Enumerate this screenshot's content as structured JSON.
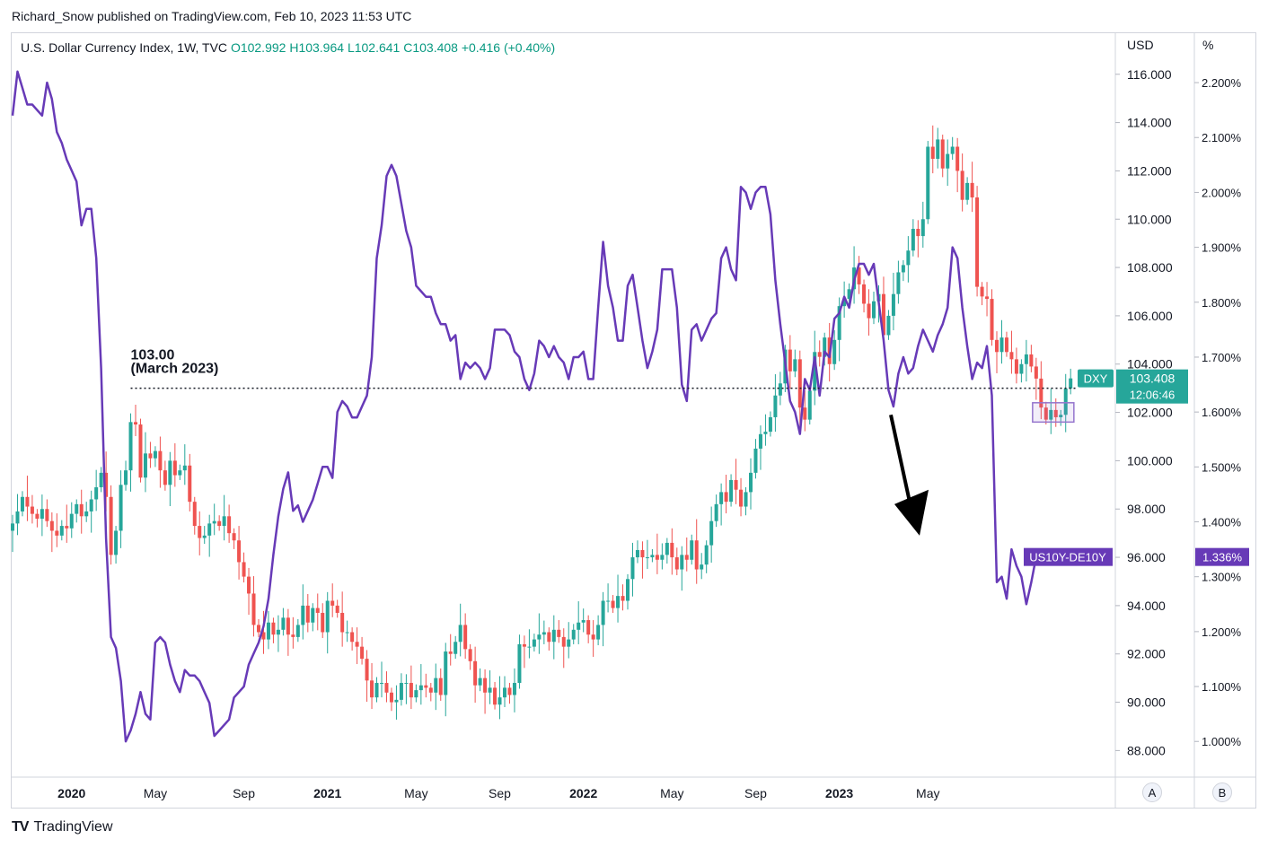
{
  "publisher": "Richard_Snow published on TradingView.com, Feb 10, 2023 11:53 UTC",
  "legend": {
    "symbol": "U.S. Dollar Currency Index, 1W, TVC",
    "open": "O102.992",
    "high": "H103.964",
    "low": "L102.641",
    "close": "C103.408",
    "change": "+0.416 (+0.40%)"
  },
  "brand": "TradingView",
  "scale_buttons": [
    "A",
    "B"
  ],
  "colors": {
    "up": "#26a69a",
    "down": "#ef5350",
    "spread_line": "#673ab7",
    "dxy_label_bg": "#26a69a",
    "spread_label_bg": "#673ab7",
    "highlight_box": "#9575cd"
  },
  "chart_data": {
    "type": "line",
    "title": "",
    "left_axis_unit": "",
    "right_axis_unit": "USD",
    "pct_axis_unit": "%",
    "x_ticks": [
      "2020",
      "May",
      "Sep",
      "2021",
      "May",
      "Sep",
      "2022",
      "May",
      "Sep",
      "2023",
      "May"
    ],
    "usd_ticks": [
      "116.000",
      "114.000",
      "112.000",
      "110.000",
      "108.000",
      "106.000",
      "104.000",
      "102.000",
      "100.000",
      "98.000",
      "96.000",
      "94.000",
      "92.000",
      "90.000",
      "88.000"
    ],
    "pct_ticks": [
      "2.200%",
      "2.100%",
      "2.000%",
      "1.900%",
      "1.800%",
      "1.700%",
      "1.600%",
      "1.500%",
      "1.400%",
      "1.300%",
      "1.200%",
      "1.100%",
      "1.000%"
    ],
    "usd_range": [
      86.9,
      117.7
    ],
    "pct_range": [
      0.935,
      2.29
    ],
    "annotation": {
      "line1": "103.00",
      "line2": "(March 2023)",
      "level": 103.0
    },
    "dxy": {
      "name": "DXY",
      "last": "103.408",
      "countdown": "12:06:46",
      "weekly_closes": [
        97.4,
        97.9,
        98.5,
        98.1,
        97.8,
        97.6,
        98.0,
        97.5,
        97.1,
        96.9,
        97.3,
        97.2,
        97.8,
        98.2,
        97.7,
        97.9,
        98.4,
        98.9,
        99.5,
        98.5,
        96.1,
        97.1,
        99.0,
        99.6,
        101.6,
        101.5,
        99.3,
        100.3,
        100.1,
        100.4,
        99.6,
        99.0,
        100.0,
        99.4,
        99.6,
        99.8,
        98.3,
        97.3,
        96.8,
        96.9,
        97.4,
        97.5,
        97.3,
        97.7,
        97.0,
        96.7,
        95.8,
        95.2,
        94.5,
        93.2,
        92.9,
        92.6,
        93.3,
        92.8,
        93.0,
        93.5,
        92.8,
        92.7,
        93.2,
        94.0,
        93.3,
        93.9,
        93.7,
        92.9,
        94.2,
        94.0,
        93.7,
        92.9,
        92.9,
        92.5,
        92.3,
        91.8,
        90.9,
        90.2,
        90.8,
        90.8,
        90.4,
        90.0,
        90.1,
        90.8,
        90.8,
        90.2,
        90.5,
        90.7,
        90.6,
        90.4,
        91.0,
        90.3,
        92.1,
        92.0,
        92.5,
        93.2,
        92.2,
        91.7,
        90.7,
        91.0,
        90.4,
        90.6,
        89.9,
        90.2,
        90.6,
        90.3,
        90.8,
        92.4,
        92.3,
        92.3,
        92.6,
        92.8,
        92.9,
        92.5,
        93.0,
        92.7,
        92.3,
        92.6,
        93.0,
        93.3,
        93.4,
        92.8,
        92.6,
        93.2,
        94.2,
        94.2,
        93.9,
        94.4,
        94.2,
        95.1,
        96.0,
        96.3,
        96.0,
        96.0,
        96.1,
        95.9,
        96.1,
        96.6,
        96.0,
        95.5,
        96.1,
        95.9,
        96.7,
        95.5,
        95.7,
        96.5,
        97.5,
        98.2,
        98.7,
        98.3,
        99.2,
        98.8,
        98.1,
        98.7,
        99.5,
        100.5,
        101.1,
        101.2,
        101.8,
        102.7,
        103.2,
        104.6,
        103.7,
        104.2,
        102.2,
        101.7,
        102.9,
        104.5,
        104.3,
        105.1,
        104.0,
        105.0,
        106.4,
        106.7,
        107.1,
        108.0,
        107.3,
        106.5,
        105.9,
        106.6,
        106.9,
        105.2,
        106.0,
        106.9,
        107.8,
        108.1,
        108.7,
        109.6,
        109.3,
        110.0,
        113.0,
        112.5,
        113.3,
        112.1,
        112.7,
        113.0,
        112.0,
        110.8,
        111.5,
        110.9,
        107.2,
        106.8,
        106.7,
        105.0,
        104.5,
        105.1,
        104.5,
        104.2,
        103.6,
        104.0,
        104.4,
        103.9,
        103.4,
        102.2,
        101.7,
        102.1,
        101.8,
        101.9,
        102.99,
        103.408
      ]
    },
    "spread": {
      "name": "US10Y-DE10Y",
      "last": "1.336%",
      "weekly_values": [
        2.14,
        2.22,
        2.19,
        2.16,
        2.16,
        2.15,
        2.14,
        2.2,
        2.17,
        2.11,
        2.09,
        2.06,
        2.04,
        2.02,
        1.94,
        1.97,
        1.97,
        1.88,
        1.68,
        1.37,
        1.19,
        1.17,
        1.11,
        1.0,
        1.02,
        1.05,
        1.09,
        1.05,
        1.04,
        1.18,
        1.19,
        1.18,
        1.14,
        1.11,
        1.09,
        1.13,
        1.12,
        1.12,
        1.11,
        1.09,
        1.07,
        1.01,
        1.02,
        1.03,
        1.04,
        1.08,
        1.09,
        1.1,
        1.14,
        1.16,
        1.18,
        1.21,
        1.26,
        1.34,
        1.41,
        1.46,
        1.49,
        1.42,
        1.43,
        1.4,
        1.42,
        1.44,
        1.47,
        1.5,
        1.5,
        1.48,
        1.6,
        1.62,
        1.61,
        1.59,
        1.59,
        1.61,
        1.63,
        1.7,
        1.88,
        1.94,
        2.03,
        2.05,
        2.03,
        1.98,
        1.93,
        1.9,
        1.83,
        1.82,
        1.81,
        1.81,
        1.78,
        1.76,
        1.76,
        1.73,
        1.74,
        1.66,
        1.69,
        1.68,
        1.69,
        1.68,
        1.66,
        1.68,
        1.75,
        1.75,
        1.75,
        1.74,
        1.71,
        1.7,
        1.66,
        1.64,
        1.67,
        1.73,
        1.72,
        1.7,
        1.72,
        1.7,
        1.69,
        1.66,
        1.7,
        1.7,
        1.71,
        1.66,
        1.66,
        1.79,
        1.91,
        1.83,
        1.79,
        1.73,
        1.73,
        1.83,
        1.85,
        1.79,
        1.73,
        1.68,
        1.71,
        1.75,
        1.86,
        1.86,
        1.86,
        1.79,
        1.65,
        1.62,
        1.75,
        1.76,
        1.73,
        1.75,
        1.77,
        1.78,
        1.88,
        1.9,
        1.86,
        1.84,
        2.01,
        2.0,
        1.97,
        2.0,
        2.01,
        2.01,
        1.96,
        1.84,
        1.76,
        1.69,
        1.62,
        1.6,
        1.56,
        1.66,
        1.64,
        1.7,
        1.63,
        1.71,
        1.7,
        1.77,
        1.78,
        1.81,
        1.79,
        1.84,
        1.87,
        1.87,
        1.85,
        1.87,
        1.8,
        1.73,
        1.64,
        1.61,
        1.67,
        1.7,
        1.67,
        1.68,
        1.72,
        1.75,
        1.73,
        1.71,
        1.74,
        1.76,
        1.79,
        1.9,
        1.88,
        1.79,
        1.72,
        1.66,
        1.69,
        1.68,
        1.72,
        1.63,
        1.29,
        1.3,
        1.26,
        1.35,
        1.32,
        1.3,
        1.25,
        1.29,
        1.336
      ]
    }
  }
}
